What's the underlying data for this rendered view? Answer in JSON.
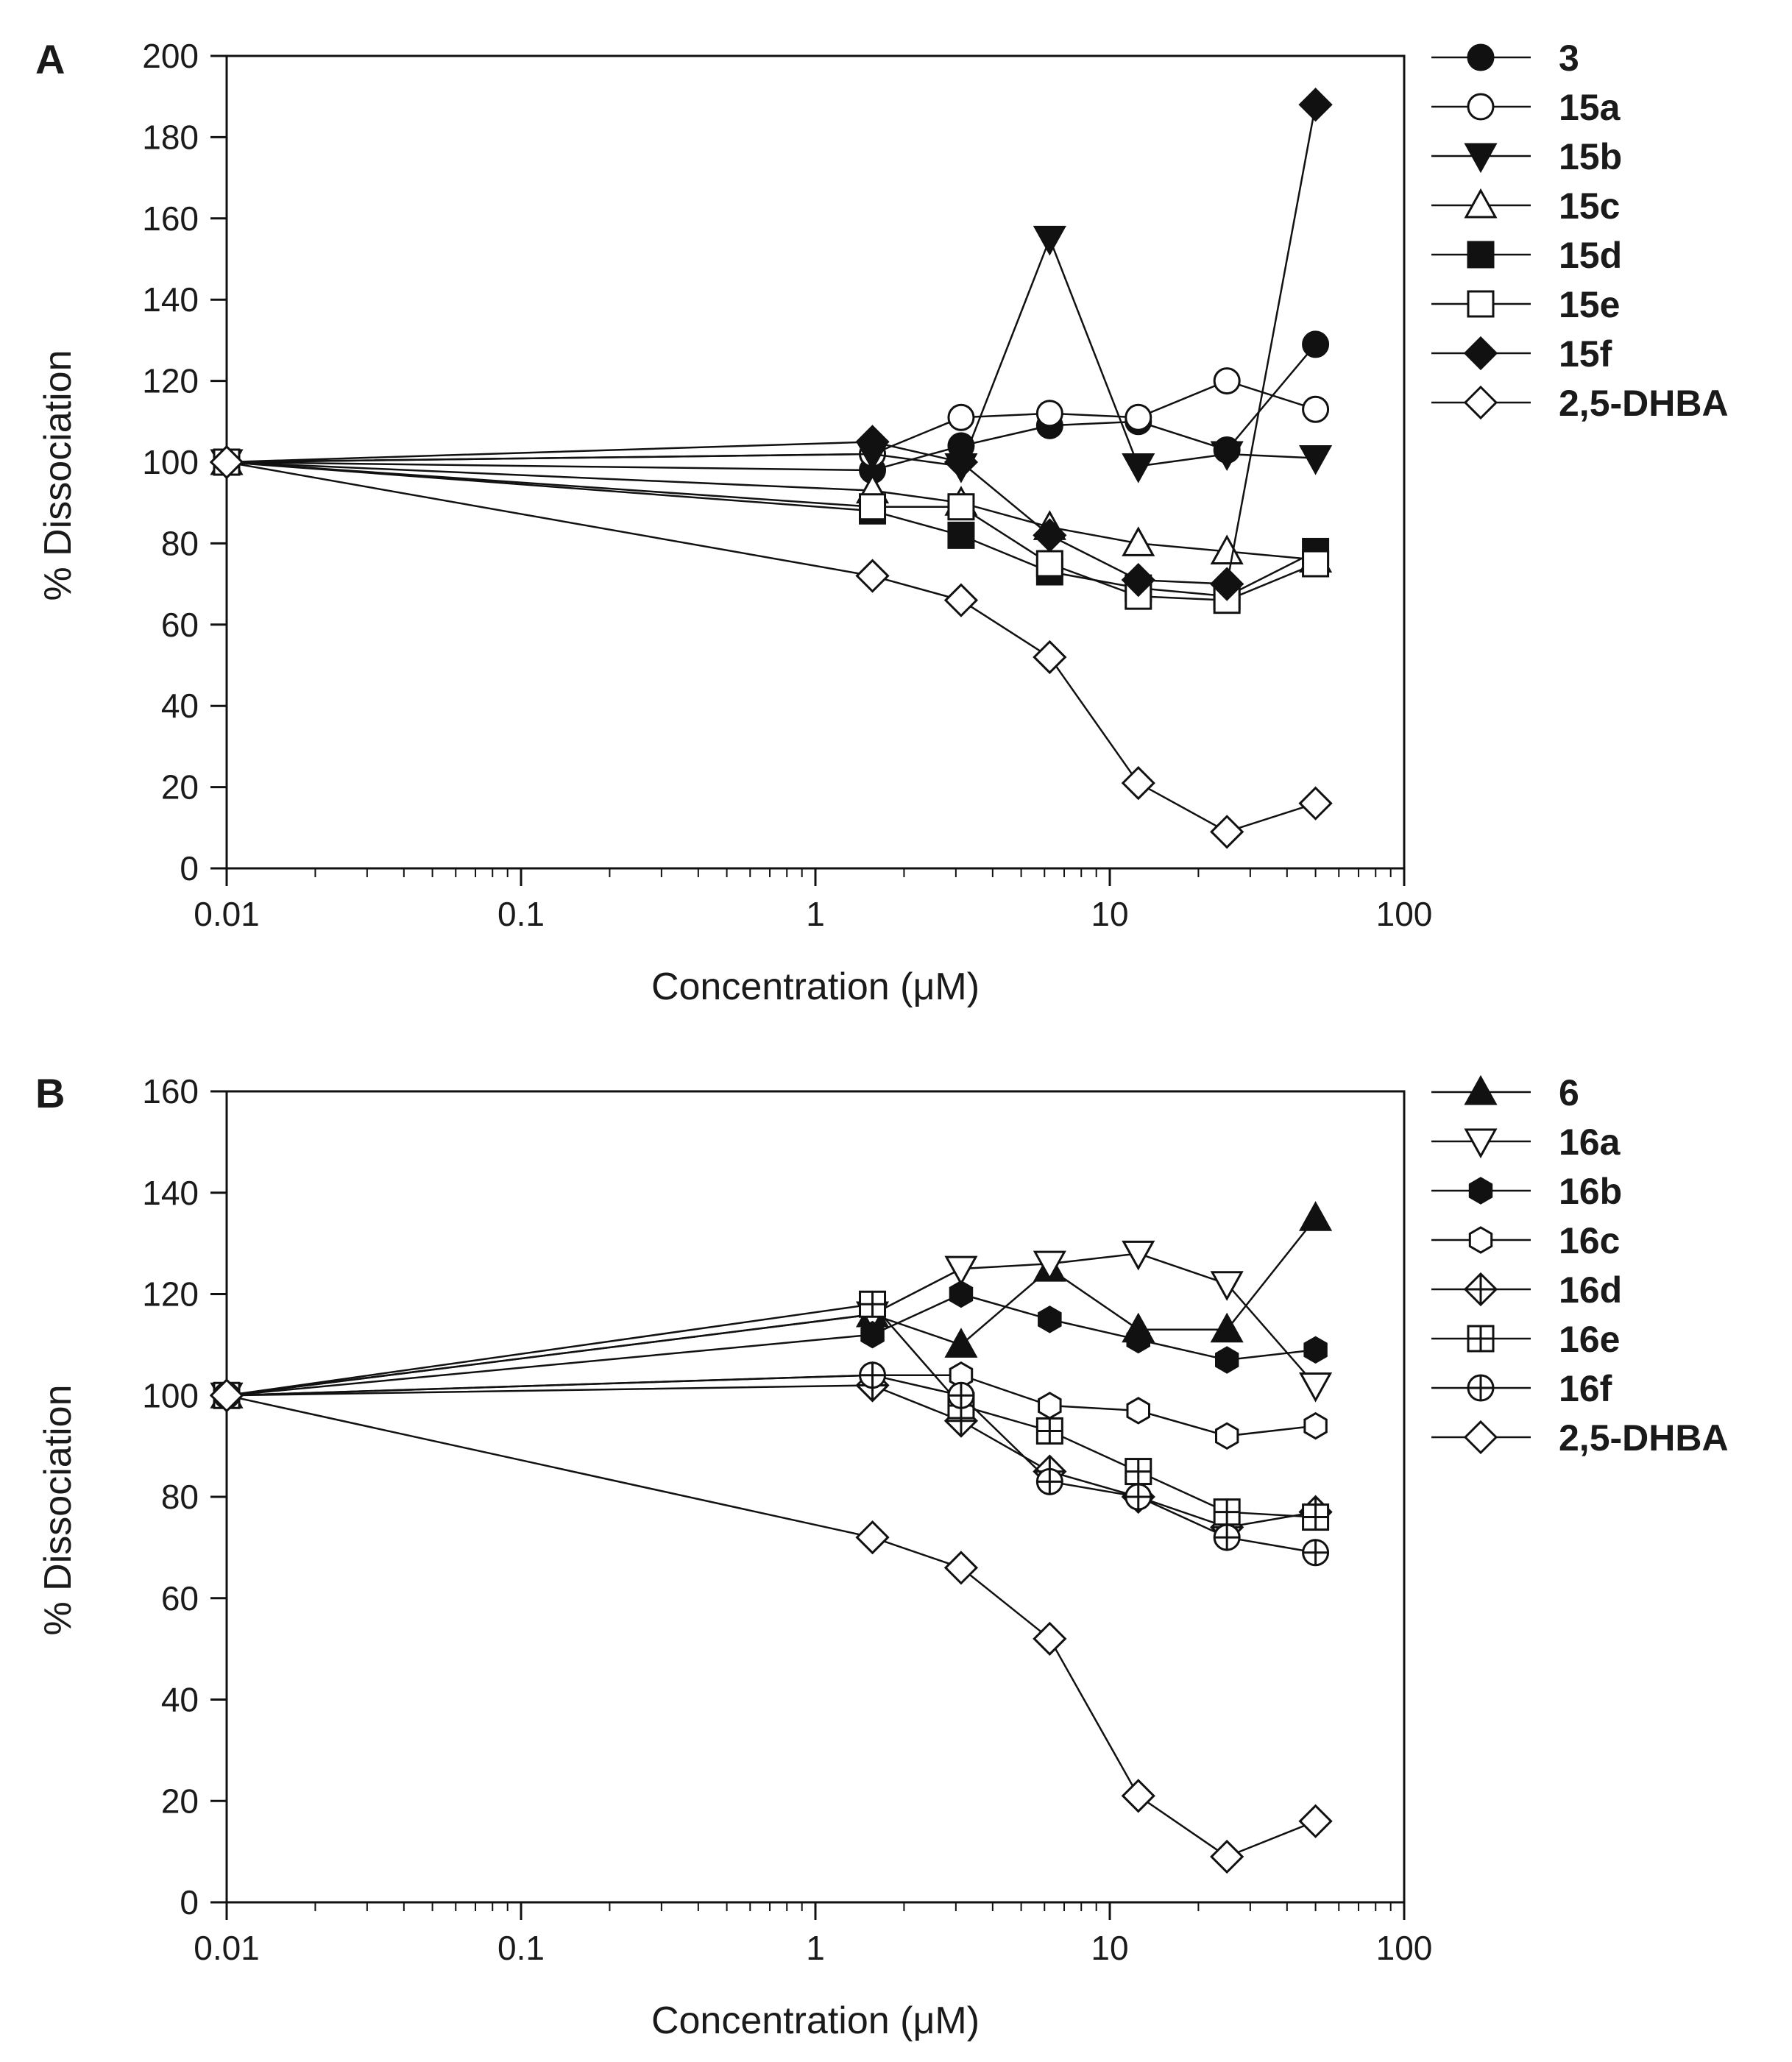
{
  "chart_data": [
    {
      "type": "line",
      "panel_label": "A",
      "xlabel": "Concentration (μM)",
      "ylabel": "% Dissociation",
      "xscale": "log",
      "xlim": [
        0.01,
        100
      ],
      "ylim": [
        0,
        200
      ],
      "xticks": [
        {
          "v": 0.01,
          "label": "0.01"
        },
        {
          "v": 0.1,
          "label": "0.1"
        },
        {
          "v": 1,
          "label": "1"
        },
        {
          "v": 10,
          "label": "10"
        },
        {
          "v": 100,
          "label": "100"
        }
      ],
      "yticks": [
        {
          "v": 0,
          "label": "0"
        },
        {
          "v": 20,
          "label": "20"
        },
        {
          "v": 40,
          "label": "40"
        },
        {
          "v": 60,
          "label": "60"
        },
        {
          "v": 80,
          "label": "80"
        },
        {
          "v": 100,
          "label": "100"
        },
        {
          "v": 120,
          "label": "120"
        },
        {
          "v": 140,
          "label": "140"
        },
        {
          "v": 160,
          "label": "160"
        },
        {
          "v": 180,
          "label": "180"
        },
        {
          "v": 200,
          "label": "200"
        }
      ],
      "grid": false,
      "legend_position": "right",
      "x": [
        0.01,
        1.5625,
        3.125,
        6.25,
        12.5,
        25,
        50
      ],
      "series": [
        {
          "name": "3",
          "marker": "circle-filled",
          "values": [
            100,
            98,
            104,
            109,
            110,
            103,
            129
          ]
        },
        {
          "name": "15a",
          "marker": "circle-open",
          "values": [
            100,
            102,
            111,
            112,
            111,
            120,
            113
          ]
        },
        {
          "name": "15b",
          "marker": "triangle-down-filled",
          "values": [
            100,
            102,
            99,
            155,
            99,
            102,
            101
          ]
        },
        {
          "name": "15c",
          "marker": "triangle-up-open",
          "values": [
            100,
            93,
            90,
            84,
            80,
            78,
            76
          ]
        },
        {
          "name": "15d",
          "marker": "square-filled",
          "values": [
            100,
            88,
            82,
            73,
            69,
            67,
            78
          ]
        },
        {
          "name": "15e",
          "marker": "square-open",
          "values": [
            100,
            89,
            89,
            75,
            67,
            66,
            75
          ]
        },
        {
          "name": "15f",
          "marker": "diamond-filled",
          "values": [
            100,
            105,
            100,
            82,
            71,
            70,
            188
          ]
        },
        {
          "name": "2,5-DHBA",
          "marker": "diamond-open",
          "values": [
            100,
            72,
            66,
            52,
            21,
            9,
            16
          ]
        }
      ]
    },
    {
      "type": "line",
      "panel_label": "B",
      "xlabel": "Concentration (μM)",
      "ylabel": "% Dissociation",
      "xscale": "log",
      "xlim": [
        0.01,
        100
      ],
      "ylim": [
        0,
        160
      ],
      "xticks": [
        {
          "v": 0.01,
          "label": "0.01"
        },
        {
          "v": 0.1,
          "label": "0.1"
        },
        {
          "v": 1,
          "label": "1"
        },
        {
          "v": 10,
          "label": "10"
        },
        {
          "v": 100,
          "label": "100"
        }
      ],
      "yticks": [
        {
          "v": 0,
          "label": "0"
        },
        {
          "v": 20,
          "label": "20"
        },
        {
          "v": 40,
          "label": "40"
        },
        {
          "v": 60,
          "label": "60"
        },
        {
          "v": 80,
          "label": "80"
        },
        {
          "v": 100,
          "label": "100"
        },
        {
          "v": 120,
          "label": "120"
        },
        {
          "v": 140,
          "label": "140"
        },
        {
          "v": 160,
          "label": "160"
        }
      ],
      "grid": false,
      "legend_position": "right",
      "x": [
        0.01,
        1.5625,
        3.125,
        6.25,
        12.5,
        25,
        50
      ],
      "series": [
        {
          "name": "6",
          "marker": "triangle-up-filled",
          "values": [
            100,
            116,
            110,
            125,
            113,
            113,
            135
          ]
        },
        {
          "name": "16a",
          "marker": "triangle-down-open",
          "values": [
            100,
            116,
            125,
            126,
            128,
            122,
            102
          ]
        },
        {
          "name": "16b",
          "marker": "hexagon-filled",
          "values": [
            100,
            112,
            120,
            115,
            111,
            107,
            109
          ]
        },
        {
          "name": "16c",
          "marker": "hexagon-open",
          "values": [
            100,
            104,
            104,
            98,
            97,
            92,
            94
          ]
        },
        {
          "name": "16d",
          "marker": "diamond-cross",
          "values": [
            100,
            102,
            95,
            85,
            80,
            74,
            77
          ]
        },
        {
          "name": "16e",
          "marker": "square-cross",
          "values": [
            100,
            118,
            98,
            93,
            85,
            77,
            76
          ]
        },
        {
          "name": "16f",
          "marker": "circle-cross",
          "values": [
            100,
            104,
            100,
            83,
            80,
            72,
            69
          ]
        },
        {
          "name": "2,5-DHBA",
          "marker": "diamond-open",
          "values": [
            100,
            72,
            66,
            52,
            21,
            9,
            16
          ]
        }
      ]
    }
  ]
}
